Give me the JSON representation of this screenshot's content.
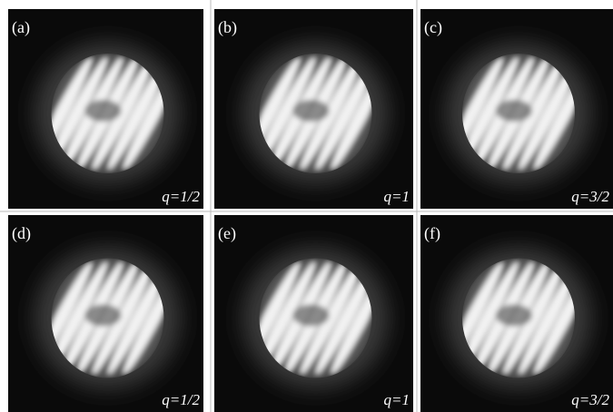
{
  "panels": [
    {
      "label": "(a)",
      "caption": "q=1/2"
    },
    {
      "label": "(b)",
      "caption": "q=1"
    },
    {
      "label": "(c)",
      "caption": "q=3/2"
    },
    {
      "label": "(d)",
      "caption": "q=1/2"
    },
    {
      "label": "(e)",
      "caption": "q=1"
    },
    {
      "label": "(f)",
      "caption": "q=3/2"
    }
  ]
}
